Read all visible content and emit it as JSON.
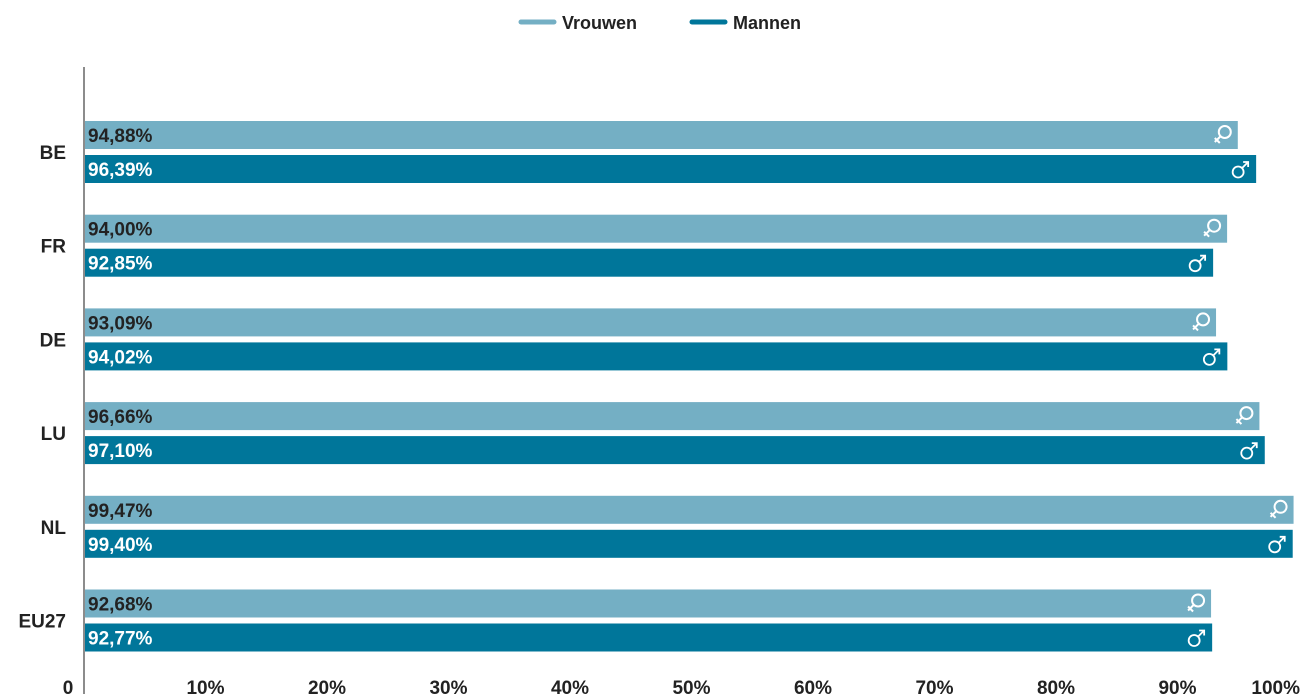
{
  "colors": {
    "vrouwen": "#74afc4",
    "mannen": "#00769a",
    "axis": "#666666",
    "text": "#222222",
    "icon": "#ffffff"
  },
  "chart_data": {
    "type": "bar",
    "orientation": "horizontal",
    "categories": [
      "BE",
      "FR",
      "DE",
      "LU",
      "NL",
      "EU27"
    ],
    "series": [
      {
        "name": "Vrouwen",
        "icon": "female-symbol-icon",
        "values": [
          94.88,
          94.0,
          93.09,
          96.66,
          99.47,
          92.68
        ],
        "labels": [
          "94,88%",
          "94,00%",
          "93,09%",
          "96,66%",
          "99,47%",
          "92,68%"
        ]
      },
      {
        "name": "Mannen",
        "icon": "male-symbol-icon",
        "values": [
          96.39,
          92.85,
          94.02,
          97.1,
          99.4,
          92.77
        ],
        "labels": [
          "96,39%",
          "92,85%",
          "94,02%",
          "97,10%",
          "99,40%",
          "92,77%"
        ]
      }
    ],
    "x_ticks": [
      "0",
      "10%",
      "20%",
      "30%",
      "40%",
      "50%",
      "60%",
      "70%",
      "80%",
      "90%",
      "100%"
    ],
    "xlim": [
      0,
      100
    ],
    "grid": false,
    "legend_position": "top-center"
  }
}
